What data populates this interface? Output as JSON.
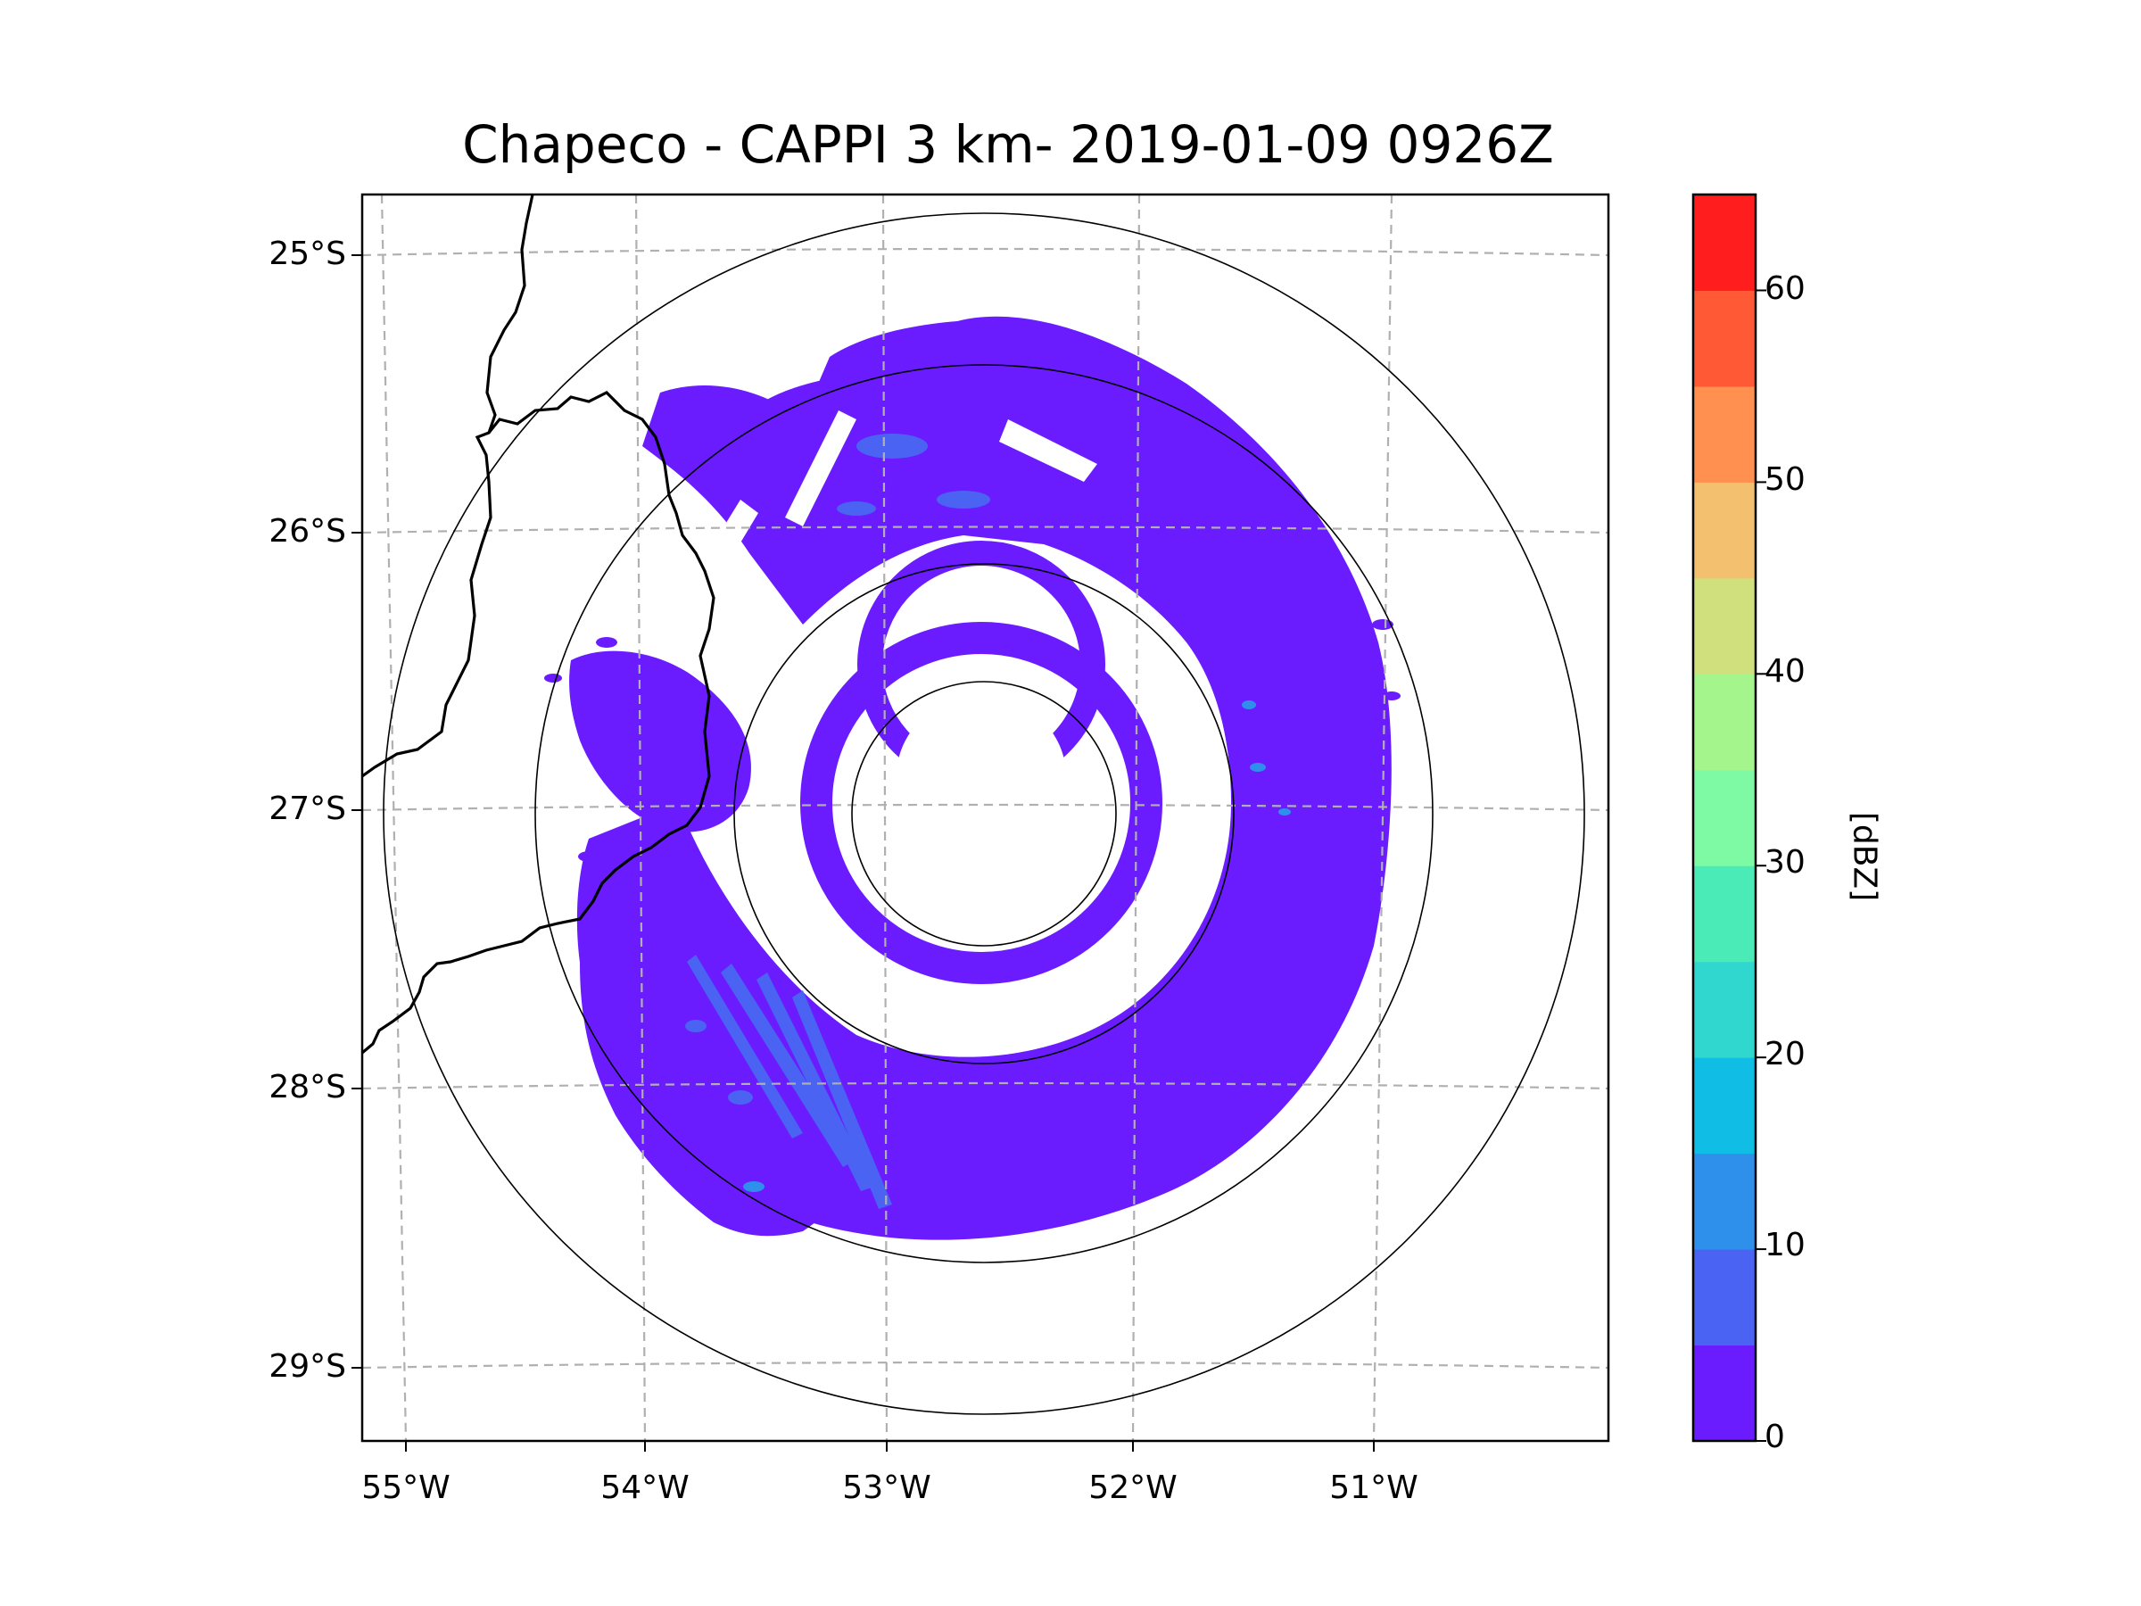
{
  "title": "Chapeco - CAPPI 3 km- 2019-01-09 0926Z",
  "lat_labels": [
    "25°S",
    "26°S",
    "27°S",
    "28°S",
    "29°S"
  ],
  "lon_labels": [
    "55°W",
    "54°W",
    "53°W",
    "52°W",
    "51°W"
  ],
  "colorbar": {
    "unit": "[dBZ]",
    "tick_labels": [
      "0",
      "10",
      "20",
      "30",
      "40",
      "50",
      "60"
    ],
    "range_dbz": [
      0,
      65
    ],
    "levels_dbz": [
      0,
      5,
      10,
      15,
      20,
      25,
      30,
      35,
      40,
      45,
      50,
      55,
      60,
      65
    ],
    "colors": [
      "#6a1cff",
      "#4a63f2",
      "#2f90ec",
      "#10bde4",
      "#30d7cf",
      "#4aebb7",
      "#7efaa5",
      "#a3f58c",
      "#cfe07d",
      "#f2c06e",
      "#ff9050",
      "#ff5a35",
      "#ff1d1d"
    ]
  },
  "radar": {
    "site": "Chapeco",
    "center_lon": -52.6,
    "center_lat": -27.0,
    "range_rings": [
      "inner",
      "middle",
      "outer",
      "max"
    ]
  },
  "map": {
    "lon_range": [
      -55.2,
      -50.05
    ],
    "lat_range": [
      -29.3,
      -24.8
    ]
  }
}
